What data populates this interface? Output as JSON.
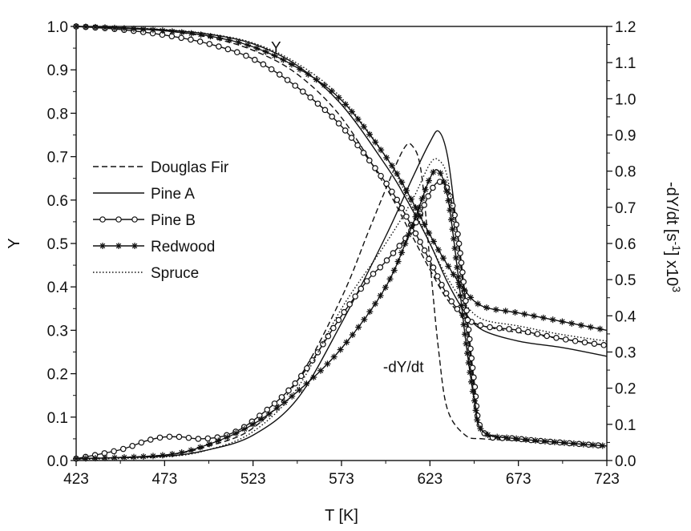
{
  "chart_data": {
    "type": "line",
    "title": "",
    "xlabel": "T [K]",
    "ylabel": "Y",
    "y2label": "-dY/dt [s-1] x10 3",
    "y2label_parts": {
      "base": "-dY/dt [s",
      "exp1": "-1",
      "mid": "] x10",
      "exp2": "3"
    },
    "xlim": [
      423,
      723
    ],
    "ylim": [
      0,
      1.0
    ],
    "y2lim": [
      0,
      1.2
    ],
    "x_ticks": [
      "423",
      "473",
      "523",
      "573",
      "623",
      "673",
      "723"
    ],
    "y_ticks": [
      "0.0",
      "0.1",
      "0.2",
      "0.3",
      "0.4",
      "0.5",
      "0.6",
      "0.7",
      "0.8",
      "0.9",
      "1.0"
    ],
    "y2_ticks": [
      "0.0",
      "0.1",
      "0.2",
      "0.3",
      "0.4",
      "0.5",
      "0.6",
      "0.7",
      "0.8",
      "0.9",
      "1.0",
      "1.1",
      "1.2"
    ],
    "grid": false,
    "legend_position": "center-left",
    "annotations": [
      {
        "text": "Y",
        "x": 536,
        "y": 0.94,
        "axis": "left"
      },
      {
        "text": "-dY/dt",
        "x": 608,
        "y": 0.245,
        "axis": "right"
      }
    ],
    "series": [
      {
        "name": "Douglas Fir",
        "dash": "dashed",
        "marker": "none",
        "Y": {
          "x": [
            423,
            448,
            473,
            498,
            523,
            548,
            573,
            598,
            610,
            623,
            633,
            643,
            653,
            673,
            698,
            723
          ],
          "y": [
            1.0,
            0.997,
            0.99,
            0.975,
            0.945,
            0.89,
            0.79,
            0.63,
            0.54,
            0.44,
            0.37,
            0.33,
            0.31,
            0.295,
            0.28,
            0.265
          ]
        },
        "rate": {
          "x": [
            423,
            473,
            498,
            523,
            548,
            573,
            588,
            598,
            608,
            613,
            618,
            623,
            628,
            633,
            643,
            653,
            673,
            723
          ],
          "y": [
            0.005,
            0.015,
            0.04,
            0.09,
            0.22,
            0.45,
            0.63,
            0.75,
            0.86,
            0.87,
            0.8,
            0.55,
            0.3,
            0.14,
            0.07,
            0.06,
            0.055,
            0.04
          ]
        }
      },
      {
        "name": "Pine A",
        "dash": "solid",
        "marker": "none",
        "Y": {
          "x": [
            423,
            448,
            473,
            498,
            523,
            548,
            573,
            598,
            610,
            623,
            633,
            643,
            653,
            673,
            698,
            723
          ],
          "y": [
            1.0,
            0.997,
            0.992,
            0.982,
            0.96,
            0.91,
            0.82,
            0.68,
            0.6,
            0.5,
            0.41,
            0.34,
            0.3,
            0.275,
            0.26,
            0.24
          ]
        },
        "rate": {
          "x": [
            423,
            473,
            498,
            523,
            548,
            573,
            598,
            613,
            623,
            628,
            633,
            638,
            643,
            648,
            653,
            673,
            723
          ],
          "y": [
            0.005,
            0.012,
            0.03,
            0.07,
            0.17,
            0.38,
            0.62,
            0.78,
            0.88,
            0.91,
            0.84,
            0.65,
            0.42,
            0.2,
            0.08,
            0.06,
            0.04
          ]
        }
      },
      {
        "name": "Pine B",
        "dash": "solid",
        "marker": "circle",
        "Y": {
          "x": [
            423,
            448,
            473,
            498,
            523,
            548,
            573,
            598,
            610,
            623,
            633,
            643,
            653,
            673,
            698,
            723
          ],
          "y": [
            1.0,
            0.993,
            0.98,
            0.96,
            0.925,
            0.86,
            0.77,
            0.64,
            0.56,
            0.46,
            0.38,
            0.33,
            0.31,
            0.3,
            0.28,
            0.265
          ]
        },
        "rate": {
          "x": [
            423,
            448,
            463,
            473,
            483,
            493,
            508,
            523,
            548,
            573,
            588,
            598,
            613,
            623,
            628,
            633,
            638,
            643,
            648,
            653,
            673,
            723
          ],
          "y": [
            0.005,
            0.03,
            0.055,
            0.065,
            0.065,
            0.06,
            0.07,
            0.11,
            0.22,
            0.4,
            0.5,
            0.55,
            0.64,
            0.74,
            0.77,
            0.75,
            0.65,
            0.45,
            0.22,
            0.08,
            0.06,
            0.04
          ]
        }
      },
      {
        "name": "Redwood",
        "dash": "solid",
        "marker": "asterisk",
        "Y": {
          "x": [
            423,
            448,
            473,
            498,
            523,
            548,
            573,
            598,
            610,
            623,
            633,
            643,
            653,
            673,
            698,
            723
          ],
          "y": [
            1.0,
            0.996,
            0.99,
            0.978,
            0.953,
            0.905,
            0.83,
            0.7,
            0.62,
            0.52,
            0.45,
            0.39,
            0.355,
            0.34,
            0.32,
            0.3
          ]
        },
        "rate": {
          "x": [
            423,
            473,
            498,
            523,
            548,
            573,
            598,
            613,
            623,
            628,
            633,
            638,
            643,
            648,
            653,
            673,
            723
          ],
          "y": [
            0.005,
            0.015,
            0.045,
            0.1,
            0.19,
            0.31,
            0.48,
            0.65,
            0.78,
            0.8,
            0.73,
            0.55,
            0.34,
            0.17,
            0.08,
            0.06,
            0.04
          ]
        }
      },
      {
        "name": "Spruce",
        "dash": "dotted",
        "marker": "none",
        "Y": {
          "x": [
            423,
            448,
            473,
            498,
            523,
            548,
            573,
            598,
            610,
            623,
            633,
            643,
            653,
            673,
            698,
            723
          ],
          "y": [
            1.0,
            0.997,
            0.993,
            0.983,
            0.962,
            0.915,
            0.835,
            0.7,
            0.61,
            0.5,
            0.42,
            0.36,
            0.325,
            0.31,
            0.29,
            0.275
          ]
        },
        "rate": {
          "x": [
            423,
            473,
            498,
            523,
            548,
            573,
            598,
            613,
            623,
            628,
            633,
            638,
            643,
            648,
            653,
            673,
            723
          ],
          "y": [
            0.003,
            0.01,
            0.03,
            0.08,
            0.2,
            0.42,
            0.6,
            0.72,
            0.82,
            0.83,
            0.78,
            0.6,
            0.38,
            0.18,
            0.08,
            0.06,
            0.04
          ]
        }
      }
    ]
  }
}
